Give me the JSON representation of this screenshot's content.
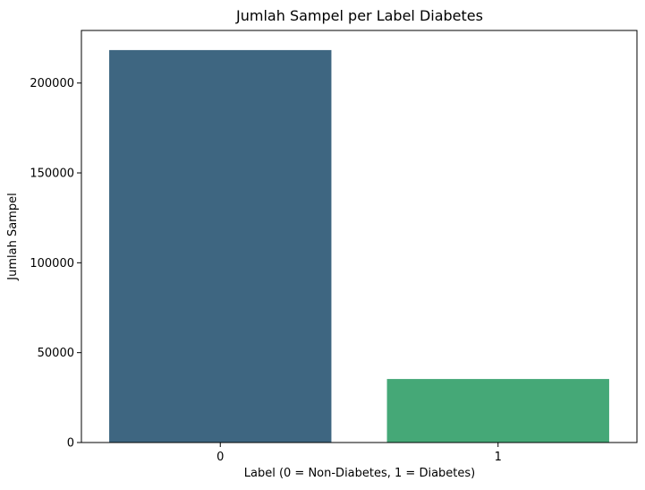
{
  "chart_data": {
    "type": "bar",
    "title": "Jumlah Sampel per Label Diabetes",
    "xlabel": "Label (0 = Non-Diabetes, 1 = Diabetes)",
    "ylabel": "Jumlah Sampel",
    "categories": [
      "0",
      "1"
    ],
    "values": [
      218334,
      35346
    ],
    "colors": [
      "#3e6681",
      "#45a877"
    ],
    "ylim": [
      0,
      229250
    ],
    "yticks": [
      0,
      50000,
      100000,
      150000,
      200000
    ],
    "ytick_labels": [
      "0",
      "50000",
      "100000",
      "150000",
      "200000"
    ],
    "grid": false,
    "legend": "none"
  }
}
